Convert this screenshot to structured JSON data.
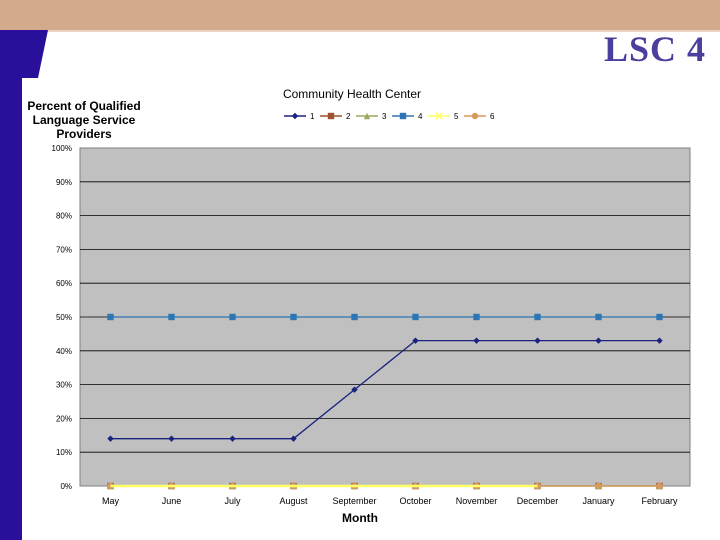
{
  "slide": {
    "title": "LSC 4",
    "colors": {
      "band": "#d4aa8c",
      "left_bar": "#2a0f9a",
      "title": "#4b3f9e",
      "plot_bg": "#c0c0c0"
    }
  },
  "chart_data": {
    "type": "line",
    "title": "Community Health Center",
    "ylabel": "Percent of Qualified Language Service Providers",
    "ylabel_lines": [
      "Percent of Qualified",
      "Language Service",
      "Providers"
    ],
    "xlabel": "Month",
    "categories": [
      "May",
      "June",
      "July",
      "August",
      "September",
      "October",
      "November",
      "December",
      "January",
      "February"
    ],
    "ylim": [
      0,
      100
    ],
    "yticks": [
      "0%",
      "10%",
      "20%",
      "30%",
      "40%",
      "50%",
      "60%",
      "70%",
      "80%",
      "90%",
      "100%"
    ],
    "grid": true,
    "legend": "top",
    "series": [
      {
        "name": "1",
        "color": "#1a237e",
        "marker": "diamond",
        "values": [
          14,
          14,
          14,
          14,
          28.5,
          43,
          43,
          43,
          43,
          43
        ]
      },
      {
        "name": "2",
        "color": "#a0522d",
        "marker": "square",
        "values": [
          0,
          0,
          0,
          0,
          0,
          0,
          0,
          0,
          0,
          0
        ]
      },
      {
        "name": "3",
        "color": "#9aaa5a",
        "marker": "triangle",
        "values": [
          0,
          0,
          0,
          0,
          0,
          0,
          0,
          0,
          0,
          0
        ]
      },
      {
        "name": "4",
        "color": "#2e75b6",
        "marker": "square",
        "values": [
          50,
          50,
          50,
          50,
          50,
          50,
          50,
          50,
          50,
          50
        ]
      },
      {
        "name": "5",
        "color": "#ffff66",
        "marker": "x",
        "values": [
          0,
          0,
          0,
          0,
          0,
          0,
          0,
          0,
          null,
          null
        ]
      },
      {
        "name": "6",
        "color": "#d89a5a",
        "marker": "circle",
        "values": [
          0,
          0,
          0,
          0,
          0,
          0,
          0,
          0,
          0,
          0
        ]
      }
    ]
  }
}
